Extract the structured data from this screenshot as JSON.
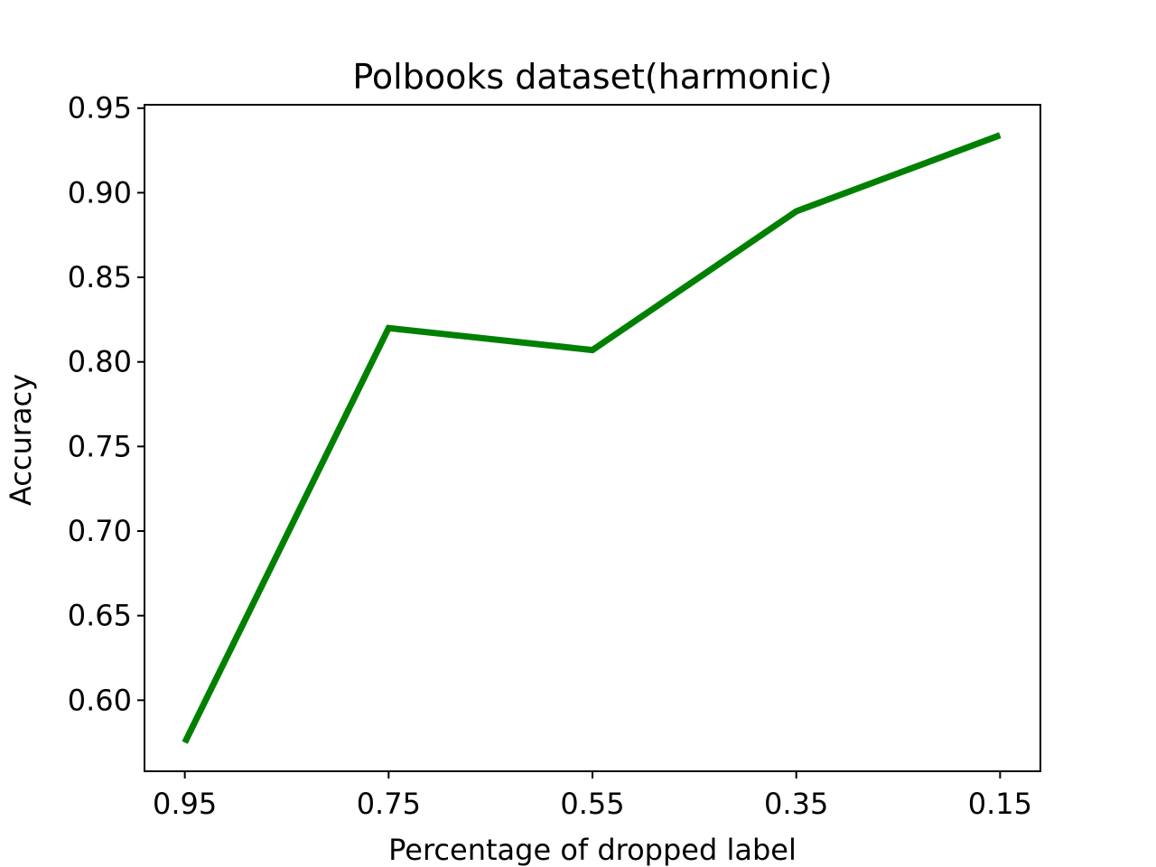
{
  "chart_data": {
    "type": "line",
    "title": "Polbooks dataset(harmonic)",
    "xlabel": "Percentage of dropped label",
    "ylabel": "Accuracy",
    "categories": [
      "0.95",
      "0.75",
      "0.55",
      "0.35",
      "0.15"
    ],
    "series": [
      {
        "values": [
          0.575,
          0.82,
          0.807,
          0.889,
          0.934
        ],
        "color": "#008000"
      }
    ],
    "ylim": [
      0.558,
      0.952
    ],
    "yticks": [
      "0.60",
      "0.65",
      "0.70",
      "0.75",
      "0.80",
      "0.85",
      "0.90",
      "0.95"
    ],
    "grid": false,
    "legend": "none"
  }
}
